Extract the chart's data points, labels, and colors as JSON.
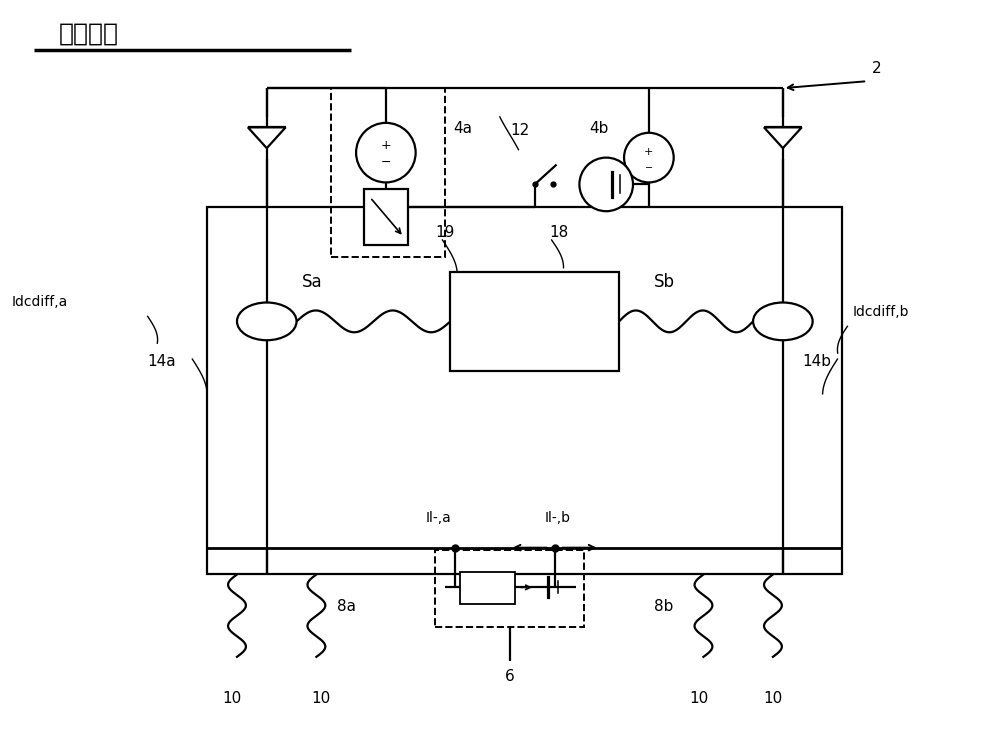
{
  "title": "现有技术",
  "bg_color": "#ffffff",
  "line_color": "#000000",
  "fig_width": 10.0,
  "fig_height": 7.41,
  "lw": 1.6,
  "labels": {
    "label_2": "2",
    "label_4a": "4a",
    "label_4b": "4b",
    "label_12": "12",
    "label_6": "6",
    "label_8a": "8a",
    "label_8b": "8b",
    "label_14a": "14a",
    "label_14b": "14b",
    "label_18": "18",
    "label_19": "19",
    "label_Sa": "Sa",
    "label_Sb": "Sb",
    "label_Idcdiffa": "Idcdiff,a",
    "label_Idcdiffb": "Idcdiff,b",
    "label_Il_a": "Il-,a",
    "label_Il_b": "Il-,b",
    "label_10": "10"
  }
}
